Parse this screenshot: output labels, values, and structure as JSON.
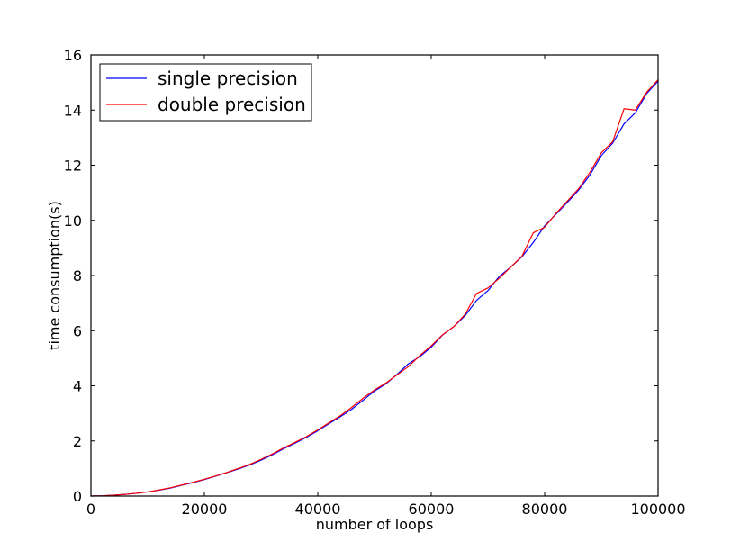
{
  "chart_data": {
    "type": "line",
    "xlabel": "number of loops",
    "ylabel": "time consumption(s)",
    "xlim": [
      0,
      100000
    ],
    "ylim": [
      0,
      16
    ],
    "xticks": [
      0,
      20000,
      40000,
      60000,
      80000,
      100000
    ],
    "xtick_labels": [
      "0",
      "20000",
      "40000",
      "60000",
      "80000",
      "100000"
    ],
    "yticks": [
      0,
      2,
      4,
      6,
      8,
      10,
      12,
      14,
      16
    ],
    "ytick_labels": [
      "0",
      "2",
      "4",
      "6",
      "8",
      "10",
      "12",
      "14",
      "16"
    ],
    "grid": false,
    "legend_position": "top-left",
    "series": [
      {
        "name": "single precision",
        "color": "#0000ff",
        "x": [
          0,
          2000,
          4000,
          6000,
          8000,
          10000,
          12000,
          14000,
          16000,
          18000,
          20000,
          22000,
          24000,
          26000,
          28000,
          30000,
          32000,
          34000,
          36000,
          38000,
          40000,
          42000,
          44000,
          46000,
          48000,
          50000,
          52000,
          54000,
          56000,
          58000,
          60000,
          62000,
          64000,
          66000,
          68000,
          70000,
          72000,
          74000,
          76000,
          78000,
          80000,
          82000,
          84000,
          86000,
          88000,
          90000,
          92000,
          94000,
          96000,
          98000,
          100000
        ],
        "y": [
          0,
          0.01,
          0.03,
          0.06,
          0.1,
          0.15,
          0.21,
          0.29,
          0.39,
          0.49,
          0.6,
          0.72,
          0.85,
          0.98,
          1.13,
          1.3,
          1.5,
          1.72,
          1.92,
          2.13,
          2.37,
          2.63,
          2.88,
          3.15,
          3.48,
          3.81,
          4.07,
          4.42,
          4.8,
          5.06,
          5.4,
          5.84,
          6.15,
          6.55,
          7.1,
          7.45,
          7.97,
          8.3,
          8.68,
          9.2,
          9.8,
          10.22,
          10.65,
          11.1,
          11.65,
          12.35,
          12.8,
          13.5,
          13.9,
          14.6,
          15.05
        ]
      },
      {
        "name": "double precision",
        "color": "#ff0000",
        "x": [
          0,
          2000,
          4000,
          6000,
          8000,
          10000,
          12000,
          14000,
          16000,
          18000,
          20000,
          22000,
          24000,
          26000,
          28000,
          30000,
          32000,
          34000,
          36000,
          38000,
          40000,
          42000,
          44000,
          46000,
          48000,
          50000,
          52000,
          54000,
          56000,
          58000,
          60000,
          62000,
          64000,
          66000,
          68000,
          70000,
          72000,
          74000,
          76000,
          78000,
          80000,
          82000,
          84000,
          86000,
          88000,
          90000,
          92000,
          94000,
          96000,
          98000,
          100000
        ],
        "y": [
          0,
          0.01,
          0.03,
          0.06,
          0.1,
          0.15,
          0.22,
          0.3,
          0.4,
          0.5,
          0.61,
          0.73,
          0.86,
          1.0,
          1.15,
          1.33,
          1.53,
          1.75,
          1.95,
          2.16,
          2.4,
          2.66,
          2.92,
          3.22,
          3.55,
          3.85,
          4.1,
          4.4,
          4.7,
          5.1,
          5.45,
          5.85,
          6.15,
          6.6,
          7.35,
          7.55,
          7.9,
          8.3,
          8.7,
          9.55,
          9.75,
          10.25,
          10.7,
          11.15,
          11.75,
          12.45,
          12.85,
          14.05,
          14.0,
          14.65,
          15.1
        ]
      }
    ]
  }
}
